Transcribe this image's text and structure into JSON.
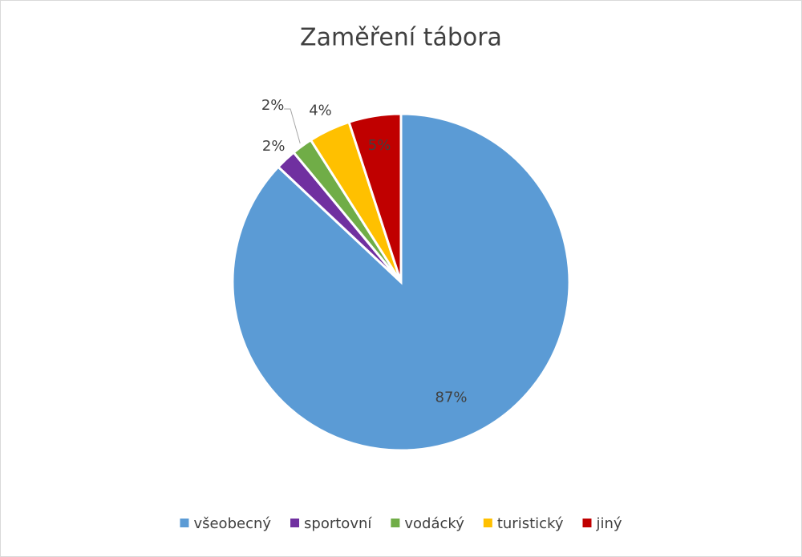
{
  "chart_data": {
    "type": "pie",
    "title": "Zaměření tábora",
    "categories": [
      "všeobecný",
      "sportovní",
      "vodácký",
      "turistický",
      "jiný"
    ],
    "values": [
      87,
      2,
      2,
      4,
      5
    ],
    "value_labels": [
      "87%",
      "2%",
      "2%",
      "4%",
      "5%"
    ],
    "colors": [
      "#5b9bd5",
      "#7030a0",
      "#70ad47",
      "#ffc000",
      "#c00000"
    ],
    "legend": "bottom"
  }
}
